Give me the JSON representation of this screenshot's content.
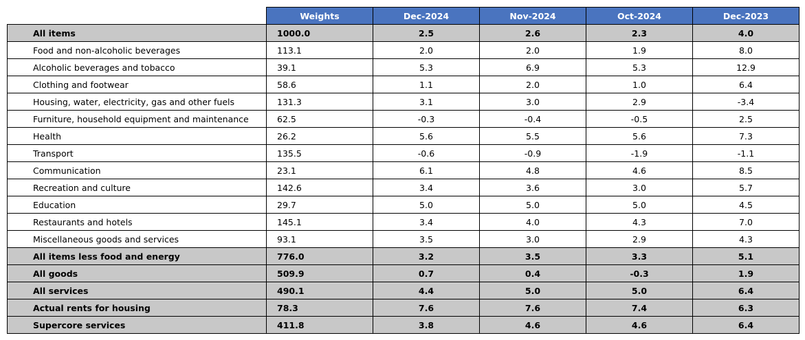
{
  "chart_data": {
    "type": "table",
    "columns": [
      "Weights",
      "Dec-2024",
      "Nov-2024",
      "Oct-2024",
      "Dec-2023"
    ],
    "rows": [
      {
        "label": "All items",
        "highlight": true,
        "values": [
          "1000.0",
          "2.5",
          "2.6",
          "2.3",
          "4.0"
        ]
      },
      {
        "label": "Food and non-alcoholic beverages",
        "highlight": false,
        "values": [
          "113.1",
          "2.0",
          "2.0",
          "1.9",
          "8.0"
        ]
      },
      {
        "label": "Alcoholic beverages and tobacco",
        "highlight": false,
        "values": [
          "39.1",
          "5.3",
          "6.9",
          "5.3",
          "12.9"
        ]
      },
      {
        "label": "Clothing and footwear",
        "highlight": false,
        "values": [
          "58.6",
          "1.1",
          "2.0",
          "1.0",
          "6.4"
        ]
      },
      {
        "label": "Housing, water, electricity, gas and other fuels",
        "highlight": false,
        "values": [
          "131.3",
          "3.1",
          "3.0",
          "2.9",
          "-3.4"
        ]
      },
      {
        "label": "Furniture, household equipment and maintenance",
        "highlight": false,
        "values": [
          "62.5",
          "-0.3",
          "-0.4",
          "-0.5",
          "2.5"
        ]
      },
      {
        "label": "Health",
        "highlight": false,
        "values": [
          "26.2",
          "5.6",
          "5.5",
          "5.6",
          "7.3"
        ]
      },
      {
        "label": "Transport",
        "highlight": false,
        "values": [
          "135.5",
          "-0.6",
          "-0.9",
          "-1.9",
          "-1.1"
        ]
      },
      {
        "label": "Communication",
        "highlight": false,
        "values": [
          "23.1",
          "6.1",
          "4.8",
          "4.6",
          "8.5"
        ]
      },
      {
        "label": "Recreation and culture",
        "highlight": false,
        "values": [
          "142.6",
          "3.4",
          "3.6",
          "3.0",
          "5.7"
        ]
      },
      {
        "label": "Education",
        "highlight": false,
        "values": [
          "29.7",
          "5.0",
          "5.0",
          "5.0",
          "4.5"
        ]
      },
      {
        "label": "Restaurants and hotels",
        "highlight": false,
        "values": [
          "145.1",
          "3.4",
          "4.0",
          "4.3",
          "7.0"
        ]
      },
      {
        "label": "Miscellaneous goods and services",
        "highlight": false,
        "values": [
          "93.1",
          "3.5",
          "3.0",
          "2.9",
          "4.3"
        ]
      },
      {
        "label": "All items less food and energy",
        "highlight": true,
        "values": [
          "776.0",
          "3.2",
          "3.5",
          "3.3",
          "5.1"
        ]
      },
      {
        "label": "All goods",
        "highlight": true,
        "values": [
          "509.9",
          "0.7",
          "0.4",
          "-0.3",
          "1.9"
        ]
      },
      {
        "label": "All services",
        "highlight": true,
        "values": [
          "490.1",
          "4.4",
          "5.0",
          "5.0",
          "6.4"
        ]
      },
      {
        "label": "Actual rents for housing",
        "highlight": true,
        "values": [
          "78.3",
          "7.6",
          "7.6",
          "7.4",
          "6.3"
        ]
      },
      {
        "label": "Supercore services",
        "highlight": true,
        "values": [
          "411.8",
          "3.8",
          "4.6",
          "4.6",
          "6.4"
        ]
      }
    ]
  },
  "colors": {
    "header_background": "#4a74bf",
    "header_text": "#ffffff",
    "highlight_row_background": "#c8c8c8",
    "border": "#000000"
  }
}
